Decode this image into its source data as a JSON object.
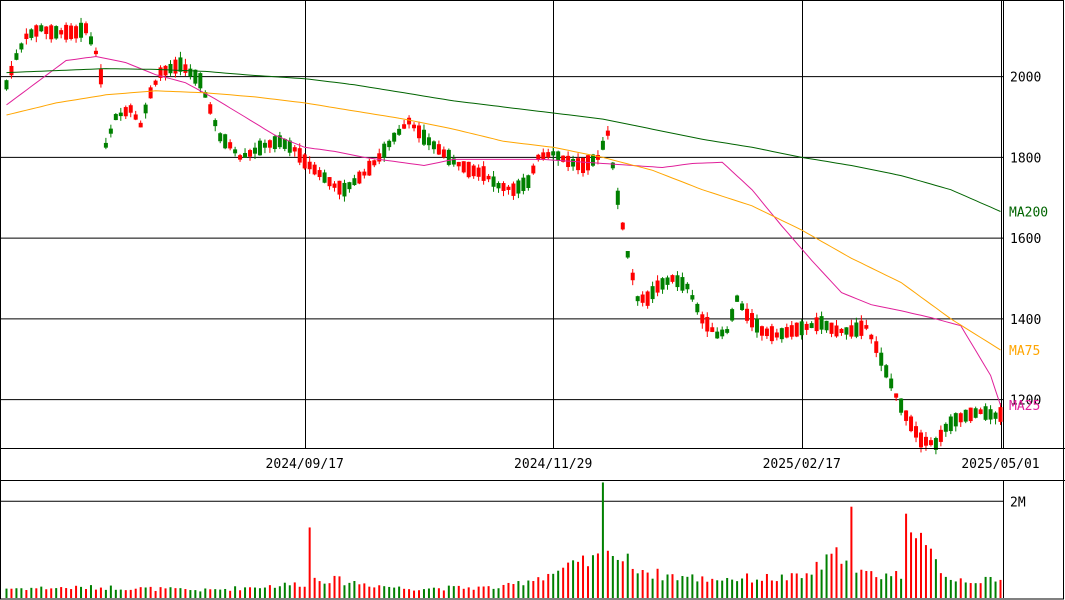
{
  "chart_data": {
    "type": "candlestick",
    "panels": [
      "price",
      "volume"
    ],
    "price_axis": {
      "ticks": [
        1200,
        1400,
        1600,
        1800,
        2000
      ],
      "tick_labels": [
        "1200",
        "1400",
        "1600",
        "1800",
        "2000"
      ],
      "ylim": [
        1080,
        2190
      ]
    },
    "volume_axis": {
      "ticks": [
        2000000
      ],
      "tick_labels": [
        "2M"
      ],
      "ylim": [
        0,
        2440000
      ]
    },
    "date_axis": {
      "tick_labels": [
        "2024/09/17",
        "2024/11/29",
        "2025/02/17",
        "2025/05/01"
      ],
      "tick_days": [
        60,
        110,
        160,
        200
      ],
      "day_count": 201
    },
    "up_color": "#008000",
    "down_color": "#ff0000",
    "moving_averages": [
      {
        "name": "MA25",
        "color": "#e0209a",
        "anchors": [
          [
            0,
            1930
          ],
          [
            6,
            1985
          ],
          [
            12,
            2040
          ],
          [
            18,
            2050
          ],
          [
            24,
            2035
          ],
          [
            30,
            2005
          ],
          [
            36,
            1985
          ],
          [
            42,
            1945
          ],
          [
            48,
            1900
          ],
          [
            54,
            1855
          ],
          [
            60,
            1825
          ],
          [
            66,
            1815
          ],
          [
            72,
            1800
          ],
          [
            78,
            1790
          ],
          [
            84,
            1780
          ],
          [
            90,
            1795
          ],
          [
            96,
            1795
          ],
          [
            102,
            1795
          ],
          [
            108,
            1795
          ],
          [
            114,
            1790
          ],
          [
            120,
            1785
          ],
          [
            126,
            1780
          ],
          [
            132,
            1775
          ],
          [
            138,
            1785
          ],
          [
            144,
            1788
          ],
          [
            150,
            1720
          ],
          [
            156,
            1630
          ],
          [
            162,
            1545
          ],
          [
            168,
            1465
          ],
          [
            174,
            1435
          ],
          [
            180,
            1420
          ],
          [
            186,
            1403
          ],
          [
            192,
            1383
          ],
          [
            198,
            1260
          ],
          [
            200,
            1186
          ]
        ]
      },
      {
        "name": "MA75",
        "color": "#ffa500",
        "anchors": [
          [
            0,
            1905
          ],
          [
            10,
            1935
          ],
          [
            20,
            1955
          ],
          [
            30,
            1965
          ],
          [
            40,
            1960
          ],
          [
            50,
            1950
          ],
          [
            60,
            1935
          ],
          [
            70,
            1915
          ],
          [
            80,
            1895
          ],
          [
            90,
            1870
          ],
          [
            100,
            1840
          ],
          [
            110,
            1825
          ],
          [
            120,
            1800
          ],
          [
            130,
            1768
          ],
          [
            140,
            1720
          ],
          [
            150,
            1680
          ],
          [
            160,
            1620
          ],
          [
            170,
            1550
          ],
          [
            180,
            1490
          ],
          [
            190,
            1400
          ],
          [
            200,
            1323
          ]
        ]
      },
      {
        "name": "MA200",
        "color": "#006400",
        "anchors": [
          [
            0,
            2010
          ],
          [
            10,
            2015
          ],
          [
            20,
            2020
          ],
          [
            30,
            2018
          ],
          [
            40,
            2013
          ],
          [
            50,
            2003
          ],
          [
            60,
            1995
          ],
          [
            70,
            1980
          ],
          [
            80,
            1960
          ],
          [
            90,
            1940
          ],
          [
            100,
            1925
          ],
          [
            110,
            1910
          ],
          [
            120,
            1895
          ],
          [
            130,
            1870
          ],
          [
            140,
            1845
          ],
          [
            150,
            1825
          ],
          [
            160,
            1800
          ],
          [
            170,
            1780
          ],
          [
            180,
            1755
          ],
          [
            190,
            1720
          ],
          [
            200,
            1666
          ]
        ]
      }
    ],
    "price_anchors": [
      [
        0,
        1980
      ],
      [
        2,
        2050
      ],
      [
        4,
        2100
      ],
      [
        7,
        2120
      ],
      [
        9,
        2110
      ],
      [
        12,
        2110
      ],
      [
        14,
        2110
      ],
      [
        16,
        2120
      ],
      [
        18,
        2060
      ],
      [
        19,
        2000
      ],
      [
        20,
        1830
      ],
      [
        22,
        1900
      ],
      [
        25,
        1920
      ],
      [
        27,
        1880
      ],
      [
        29,
        1960
      ],
      [
        31,
        2010
      ],
      [
        33,
        2020
      ],
      [
        35,
        2030
      ],
      [
        37,
        2010
      ],
      [
        39,
        1990
      ],
      [
        41,
        1920
      ],
      [
        43,
        1850
      ],
      [
        45,
        1830
      ],
      [
        47,
        1800
      ],
      [
        49,
        1810
      ],
      [
        52,
        1830
      ],
      [
        55,
        1840
      ],
      [
        58,
        1820
      ],
      [
        60,
        1790
      ],
      [
        63,
        1760
      ],
      [
        66,
        1730
      ],
      [
        68,
        1720
      ],
      [
        70,
        1740
      ],
      [
        72,
        1760
      ],
      [
        75,
        1800
      ],
      [
        78,
        1850
      ],
      [
        81,
        1890
      ],
      [
        84,
        1850
      ],
      [
        87,
        1820
      ],
      [
        90,
        1790
      ],
      [
        93,
        1770
      ],
      [
        96,
        1760
      ],
      [
        99,
        1730
      ],
      [
        102,
        1720
      ],
      [
        105,
        1740
      ],
      [
        107,
        1800
      ],
      [
        110,
        1810
      ],
      [
        113,
        1790
      ],
      [
        116,
        1780
      ],
      [
        119,
        1800
      ],
      [
        121,
        1860
      ],
      [
        123,
        1700
      ],
      [
        125,
        1560
      ],
      [
        127,
        1450
      ],
      [
        129,
        1450
      ],
      [
        131,
        1480
      ],
      [
        134,
        1500
      ],
      [
        137,
        1480
      ],
      [
        140,
        1400
      ],
      [
        143,
        1360
      ],
      [
        145,
        1370
      ],
      [
        147,
        1450
      ],
      [
        149,
        1410
      ],
      [
        152,
        1370
      ],
      [
        155,
        1360
      ],
      [
        158,
        1370
      ],
      [
        161,
        1380
      ],
      [
        164,
        1390
      ],
      [
        167,
        1370
      ],
      [
        170,
        1370
      ],
      [
        173,
        1380
      ],
      [
        175,
        1330
      ],
      [
        177,
        1270
      ],
      [
        179,
        1210
      ],
      [
        181,
        1160
      ],
      [
        184,
        1100
      ],
      [
        187,
        1090
      ],
      [
        189,
        1130
      ],
      [
        191,
        1150
      ],
      [
        193,
        1160
      ],
      [
        196,
        1170
      ],
      [
        199,
        1160
      ],
      [
        200,
        1163
      ]
    ],
    "volume_anchors": [
      [
        0,
        200000
      ],
      [
        20,
        220000
      ],
      [
        40,
        160000
      ],
      [
        60,
        300000
      ],
      [
        61,
        1380000
      ],
      [
        62,
        420000
      ],
      [
        80,
        200000
      ],
      [
        100,
        220000
      ],
      [
        119,
        800000
      ],
      [
        120,
        2140000
      ],
      [
        121,
        1300000
      ],
      [
        122,
        900000
      ],
      [
        130,
        500000
      ],
      [
        140,
        400000
      ],
      [
        160,
        420000
      ],
      [
        169,
        1000000
      ],
      [
        170,
        1700000
      ],
      [
        171,
        500000
      ],
      [
        180,
        480000
      ],
      [
        181,
        2000000
      ],
      [
        182,
        1800000
      ],
      [
        183,
        1200000
      ],
      [
        190,
        400000
      ],
      [
        200,
        340000
      ]
    ]
  }
}
